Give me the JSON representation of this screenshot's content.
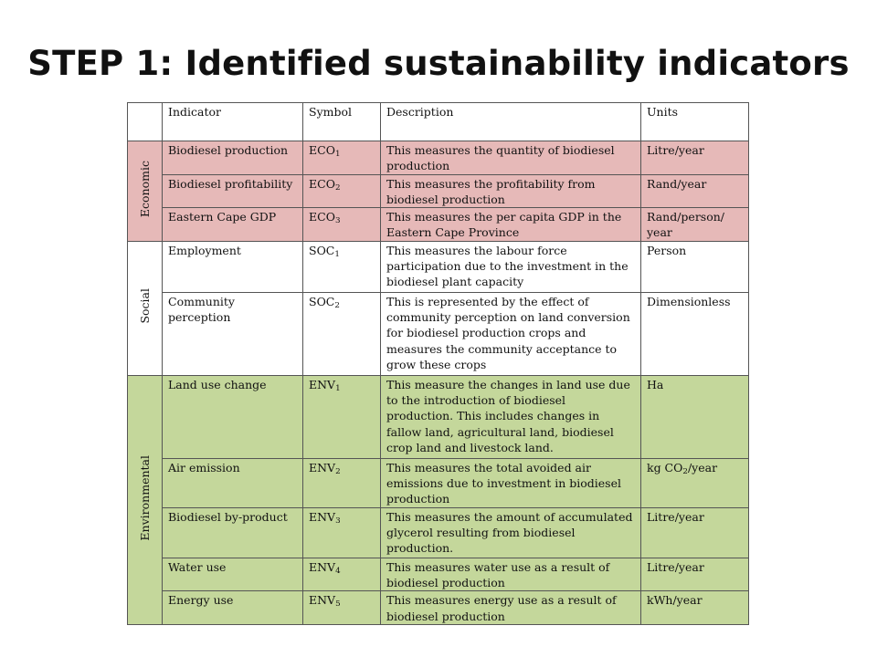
{
  "title": "STEP 1: Identified sustainability indicators",
  "table": {
    "headers": {
      "category": "",
      "indicator": "Indicator",
      "symbol": "Symbol",
      "description": "Description",
      "units": "Units"
    },
    "groups": [
      {
        "name": "Economic",
        "color": "#e6b9b8",
        "rows": [
          {
            "indicator": "Biodiesel production",
            "symbol": "ECO",
            "symbol_sub": "1",
            "description": "This measures the quantity of biodiesel production",
            "units": "Litre/year"
          },
          {
            "indicator": "Biodiesel profitability",
            "symbol": "ECO",
            "symbol_sub": "2",
            "description": "This measures the profitability from biodiesel production",
            "units": "Rand/year"
          },
          {
            "indicator": "Eastern Cape GDP",
            "symbol": "ECO",
            "symbol_sub": "3",
            "description": "This measures the per capita GDP in the Eastern Cape Province",
            "units": "Rand/person/ year"
          }
        ]
      },
      {
        "name": "Social",
        "color": "#ffffff",
        "rows": [
          {
            "indicator": "Employment",
            "symbol": "SOC",
            "symbol_sub": "1",
            "description": "This measures the labour force participation due to the investment in the biodiesel plant capacity",
            "units": "Person"
          },
          {
            "indicator": "Community perception",
            "symbol": "SOC",
            "symbol_sub": "2",
            "description": "This is represented by the effect of community perception on land conversion for biodiesel production crops and measures the community acceptance to grow these crops",
            "units": "Dimensionless"
          }
        ]
      },
      {
        "name": "Environmental",
        "color": "#c4d79b",
        "rows": [
          {
            "indicator": "Land use change",
            "symbol": "ENV",
            "symbol_sub": "1",
            "description": "This measure the changes in land use due to the introduction of biodiesel production. This includes changes in fallow land, agricultural land, biodiesel crop land and livestock land.",
            "units": "Ha"
          },
          {
            "indicator": "Air emission",
            "symbol": "ENV",
            "symbol_sub": "2",
            "description": "This measures the total avoided air emissions due to investment in biodiesel production",
            "units": "kg CO",
            "units_sub": "2",
            "units_suffix": "/year"
          },
          {
            "indicator": "Biodiesel by-product",
            "symbol": "ENV",
            "symbol_sub": "3",
            "description": "This measures the amount of accumulated glycerol resulting from biodiesel production.",
            "units": "Litre/year"
          },
          {
            "indicator": "Water use",
            "symbol": "ENV",
            "symbol_sub": "4",
            "description": "This measures water use as a result of biodiesel production",
            "units": "Litre/year"
          },
          {
            "indicator": "Energy use",
            "symbol": "ENV",
            "symbol_sub": "5",
            "description": "This measures energy use as a result of biodiesel production",
            "units": "kWh/year"
          }
        ]
      }
    ]
  }
}
